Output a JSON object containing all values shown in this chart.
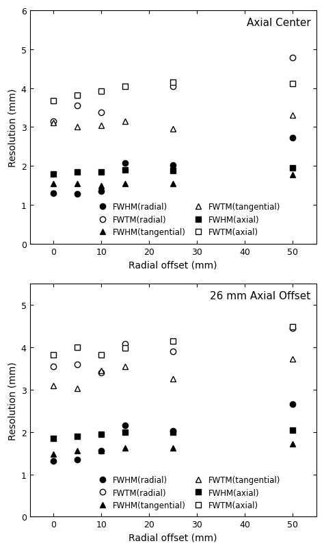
{
  "plot1": {
    "title": "Axial Center",
    "x": [
      0,
      5,
      10,
      15,
      25,
      50
    ],
    "fwhm_radial": [
      1.3,
      1.28,
      1.35,
      2.08,
      2.02,
      2.72
    ],
    "fwhm_tangential": [
      1.55,
      1.55,
      1.5,
      1.55,
      1.55,
      1.78
    ],
    "fwhm_axial": [
      1.8,
      1.85,
      1.85,
      1.9,
      1.88,
      1.95
    ],
    "fwtm_radial": [
      3.15,
      3.55,
      3.38,
      null,
      4.05,
      4.78
    ],
    "fwtm_tangential": [
      3.12,
      3.0,
      3.05,
      3.15,
      2.95,
      3.3
    ],
    "fwtm_axial": [
      3.68,
      3.82,
      3.92,
      4.05,
      4.15,
      4.12
    ]
  },
  "plot2": {
    "title": "26 mm Axial Offset",
    "x": [
      0,
      5,
      10,
      15,
      25,
      50
    ],
    "fwhm_radial": [
      1.32,
      1.35,
      1.55,
      2.15,
      2.02,
      2.65
    ],
    "fwhm_tangential": [
      1.48,
      1.55,
      1.55,
      1.62,
      1.62,
      1.72
    ],
    "fwhm_axial": [
      1.85,
      1.9,
      1.95,
      2.0,
      2.0,
      2.05
    ],
    "fwtm_radial": [
      3.55,
      3.6,
      3.4,
      4.08,
      3.9,
      4.45
    ],
    "fwtm_tangential": [
      3.1,
      3.02,
      3.45,
      3.55,
      3.25,
      3.72
    ],
    "fwtm_axial": [
      3.82,
      4.0,
      3.82,
      3.98,
      4.15,
      4.48
    ]
  },
  "xlim": [
    -5,
    55
  ],
  "ylim1": [
    0,
    6
  ],
  "ylim2": [
    0,
    5.5
  ],
  "xticks": [
    0,
    10,
    20,
    30,
    40,
    50
  ],
  "yticks1": [
    0,
    1,
    2,
    3,
    4,
    5,
    6
  ],
  "yticks2": [
    0,
    1,
    2,
    3,
    4,
    5
  ],
  "xlabel": "Radial offset (mm)",
  "ylabel": "Resolution (mm)",
  "marker_size": 6,
  "legend_fontsize": 8.5
}
